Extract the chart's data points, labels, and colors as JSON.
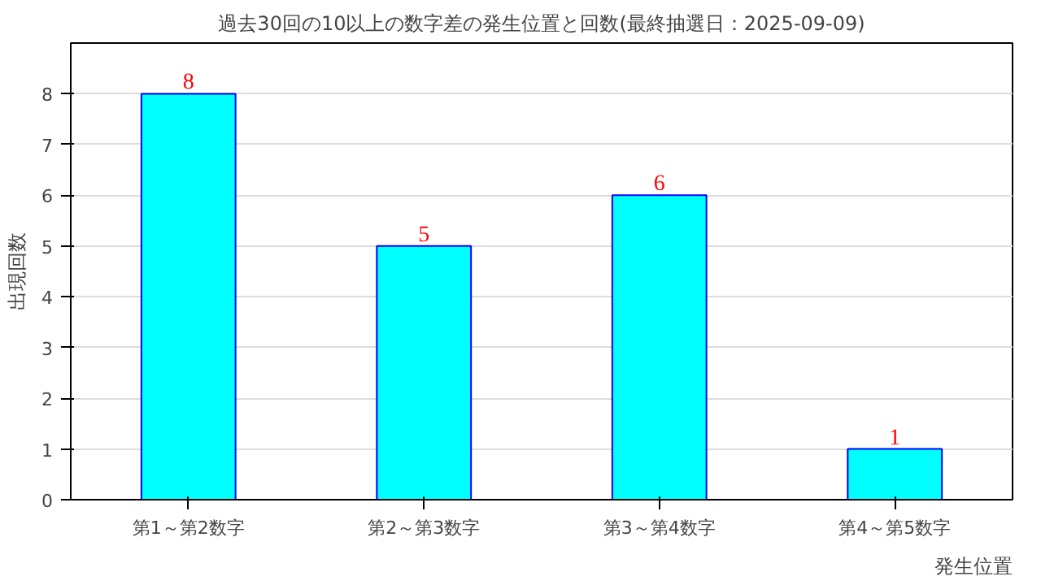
{
  "chart_data": {
    "type": "bar",
    "title": "過去30回の10以上の数字差の発生位置と回数(最終抽選日：2025-09-09)",
    "xlabel": "発生位置",
    "ylabel": "出現回数",
    "categories": [
      "第1～第2数字",
      "第2～第3数字",
      "第3～第4数字",
      "第4～第5数字"
    ],
    "values": [
      8,
      5,
      6,
      1
    ],
    "color": "#00ffff",
    "ylim": [
      0,
      9
    ],
    "yticks": [
      0,
      1,
      2,
      3,
      4,
      5,
      6,
      7,
      8
    ],
    "grid": "y",
    "data_labels": true
  }
}
